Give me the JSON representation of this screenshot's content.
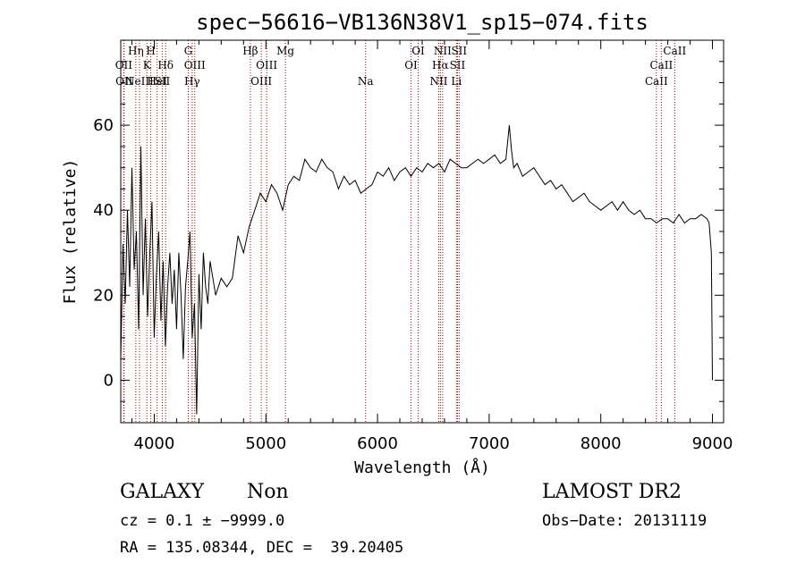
{
  "chart_data": {
    "type": "line",
    "title": "spec−56616−VB136N38V1_sp15−074.fits",
    "xlabel": "Wavelength (Å)",
    "ylabel": "Flux (relative)",
    "xlim": [
      3700,
      9100
    ],
    "ylim": [
      -10,
      80
    ],
    "xticks": [
      4000,
      5000,
      6000,
      7000,
      8000,
      9000
    ],
    "yticks": [
      0,
      20,
      40,
      60
    ],
    "grid": false,
    "series": [
      {
        "x": [
          3700,
          3720,
          3740,
          3760,
          3780,
          3800,
          3820,
          3840,
          3860,
          3880,
          3900,
          3920,
          3940,
          3960,
          3980,
          4000,
          4020,
          4040,
          4060,
          4080,
          4100,
          4120,
          4140,
          4160,
          4180,
          4200,
          4220,
          4240,
          4260,
          4280,
          4300,
          4320,
          4340,
          4360,
          4380,
          4400,
          4420,
          4440,
          4460,
          4480,
          4500,
          4550,
          4600,
          4650,
          4700,
          4750,
          4800,
          4850,
          4900,
          4950,
          5000,
          5050,
          5100,
          5150,
          5200,
          5250,
          5300,
          5350,
          5400,
          5450,
          5500,
          5550,
          5600,
          5650,
          5700,
          5750,
          5800,
          5850,
          5900,
          5950,
          6000,
          6050,
          6100,
          6150,
          6200,
          6250,
          6300,
          6350,
          6400,
          6450,
          6500,
          6550,
          6600,
          6650,
          6700,
          6750,
          6800,
          6850,
          6900,
          6950,
          7000,
          7050,
          7100,
          7150,
          7180,
          7200,
          7220,
          7250,
          7300,
          7350,
          7400,
          7450,
          7500,
          7550,
          7600,
          7650,
          7700,
          7750,
          7800,
          7850,
          7900,
          7950,
          8000,
          8050,
          8100,
          8150,
          8200,
          8250,
          8300,
          8350,
          8400,
          8450,
          8500,
          8550,
          8600,
          8650,
          8700,
          8750,
          8800,
          8850,
          8900,
          8950,
          8970,
          8990,
          9000
        ],
        "y": [
          5,
          32,
          18,
          40,
          22,
          50,
          26,
          35,
          12,
          55,
          20,
          38,
          15,
          30,
          42,
          10,
          25,
          35,
          14,
          28,
          8,
          22,
          30,
          18,
          26,
          12,
          30,
          20,
          5,
          22,
          28,
          35,
          10,
          18,
          -8,
          25,
          12,
          30,
          22,
          18,
          28,
          20,
          24,
          22,
          24,
          34,
          30,
          36,
          40,
          44,
          42,
          46,
          44,
          40,
          46,
          48,
          47,
          52,
          50,
          49,
          52,
          50,
          49,
          45,
          48,
          46,
          47,
          44,
          45,
          46,
          49,
          48,
          50,
          47,
          49,
          50,
          48,
          50,
          49,
          51,
          50,
          51,
          49,
          52,
          51,
          50,
          50,
          51,
          52,
          51,
          52,
          53,
          51,
          52,
          60,
          54,
          50,
          51,
          48,
          49,
          50,
          48,
          46,
          47,
          45,
          46,
          44,
          42,
          43,
          44,
          42,
          41,
          40,
          41,
          42,
          40,
          42,
          40,
          39,
          40,
          38,
          38,
          37,
          38,
          38,
          37,
          39,
          37,
          38,
          38,
          39,
          38,
          37,
          30,
          0
        ]
      }
    ],
    "spectral_lines": [
      {
        "wave": 3727,
        "label": "OII",
        "row": 1
      },
      {
        "wave": 3730,
        "label": "OII",
        "row": 2
      },
      {
        "wave": 3835,
        "label": "Hη",
        "row": 0
      },
      {
        "wave": 3868,
        "label": "NeIII",
        "row": 2
      },
      {
        "wave": 3934,
        "label": "K",
        "row": 1
      },
      {
        "wave": 3969,
        "label": "H",
        "row": 0
      },
      {
        "wave": 4026,
        "label": "HeI",
        "row": 2
      },
      {
        "wave": 4102,
        "label": "Hδ",
        "row": 1
      },
      {
        "wave": 4072,
        "label": "SII",
        "row": 2
      },
      {
        "wave": 4305,
        "label": "G",
        "row": 0
      },
      {
        "wave": 4340,
        "label": "Hγ",
        "row": 2
      },
      {
        "wave": 4363,
        "label": "OIII",
        "row": 1
      },
      {
        "wave": 4861,
        "label": "Hβ",
        "row": 0
      },
      {
        "wave": 4959,
        "label": "OIII",
        "row": 2
      },
      {
        "wave": 5007,
        "label": "OIII",
        "row": 1
      },
      {
        "wave": 5175,
        "label": "Mg",
        "row": 0
      },
      {
        "wave": 5893,
        "label": "Na",
        "row": 2
      },
      {
        "wave": 6300,
        "label": "OI",
        "row": 1
      },
      {
        "wave": 6364,
        "label": "OI",
        "row": 0
      },
      {
        "wave": 6548,
        "label": "NII",
        "row": 2
      },
      {
        "wave": 6563,
        "label": "Hα",
        "row": 1
      },
      {
        "wave": 6583,
        "label": "NII",
        "row": 0
      },
      {
        "wave": 6707,
        "label": "Li",
        "row": 2
      },
      {
        "wave": 6716,
        "label": "SII",
        "row": 1
      },
      {
        "wave": 6731,
        "label": "SII",
        "row": 0
      },
      {
        "wave": 8498,
        "label": "CaII",
        "row": 2
      },
      {
        "wave": 8542,
        "label": "CaII",
        "row": 1
      },
      {
        "wave": 8662,
        "label": "CaII",
        "row": 0
      }
    ]
  },
  "info": {
    "class": "GALAXY",
    "subclass": "Non",
    "survey": "LAMOST DR2",
    "cz": "cz = 0.1 ± −9999.0",
    "obs_date": "Obs−Date: 20131119",
    "radec": "RA = 135.08344, DEC =  39.20405"
  },
  "colors": {
    "line_marker": "#aa0000",
    "spectrum": "#000000"
  }
}
